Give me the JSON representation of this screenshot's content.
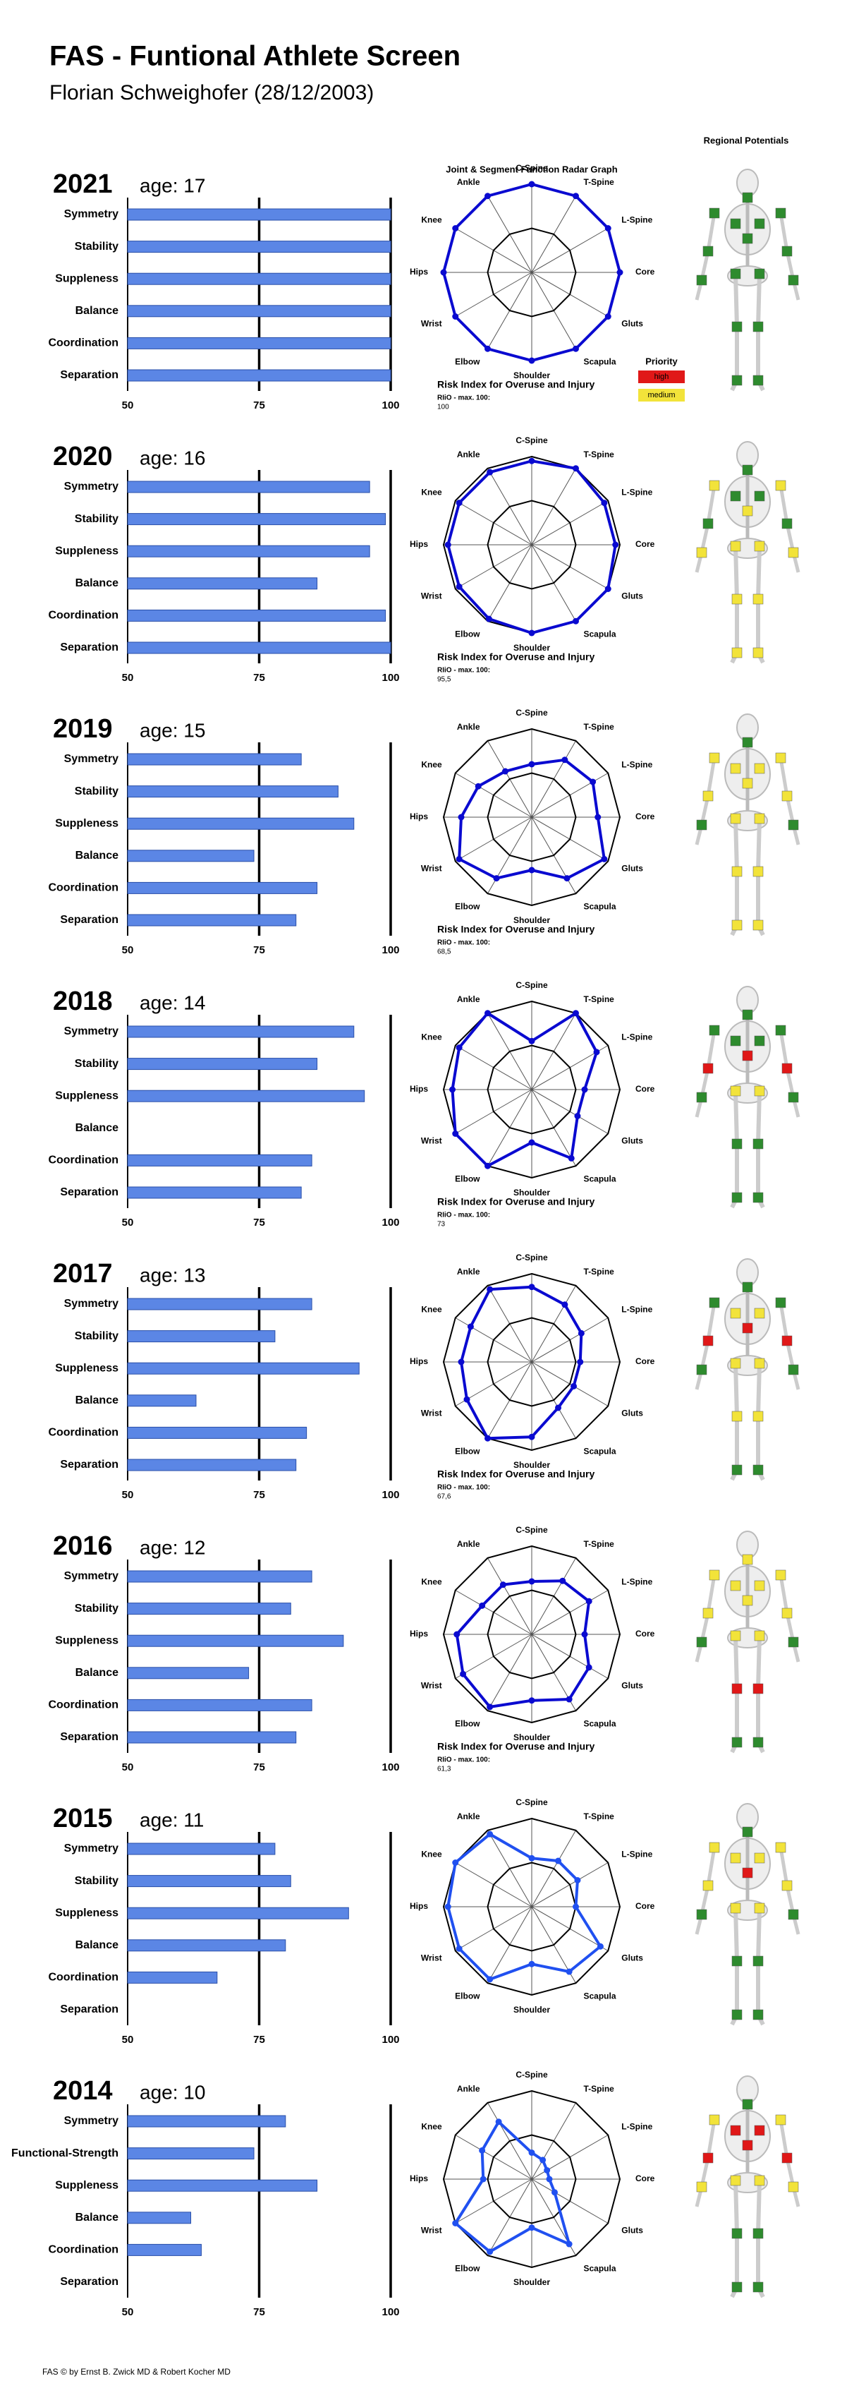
{
  "title": "FAS - Funtional Athlete Screen",
  "subtitle": "Florian Schweighofer (28/12/2003)",
  "footer": "FAS © by Ernst B. Zwick MD & Robert Kocher MD",
  "regional": {
    "title": "Regional Potentials",
    "priority_title": "Priority",
    "priority_items": [
      {
        "label": "high",
        "color": "#e01818"
      },
      {
        "label": "medium",
        "color": "#f2e33a"
      }
    ],
    "markers": [
      [
        "#2e8b2e",
        "#2e8b2e",
        "#2e8b2e",
        "#2e8b2e",
        "#2e8b2e",
        "#2e8b2e",
        "#2e8b2e",
        "#2e8b2e",
        "#2e8b2e",
        "#2e8b2e",
        "#2e8b2e",
        "#2e8b2e",
        "#2e8b2e",
        "#2e8b2e",
        "#2e8b2e",
        "#2e8b2e"
      ],
      [
        "#2e8b2e",
        "#f2e33a",
        "#f2e33a",
        "#2e8b2e",
        "#2e8b2e",
        "#f2e33a",
        "#2e8b2e",
        "#2e8b2e",
        "#f2e33a",
        "#f2e33a",
        "#f2e33a",
        "#f2e33a",
        "#f2e33a",
        "#f2e33a",
        "#f2e33a",
        "#f2e33a"
      ],
      [
        "#2e8b2e",
        "#f2e33a",
        "#f2e33a",
        "#f2e33a",
        "#f2e33a",
        "#f2e33a",
        "#f2e33a",
        "#f2e33a",
        "#f2e33a",
        "#f2e33a",
        "#2e8b2e",
        "#2e8b2e",
        "#f2e33a",
        "#f2e33a",
        "#f2e33a",
        "#f2e33a"
      ],
      [
        "#2e8b2e",
        "#2e8b2e",
        "#2e8b2e",
        "#2e8b2e",
        "#2e8b2e",
        "#e01818",
        "#e01818",
        "#e01818",
        "#f2e33a",
        "#f2e33a",
        "#2e8b2e",
        "#2e8b2e",
        "#2e8b2e",
        "#2e8b2e",
        "#2e8b2e",
        "#2e8b2e"
      ],
      [
        "#2e8b2e",
        "#2e8b2e",
        "#2e8b2e",
        "#f2e33a",
        "#f2e33a",
        "#e01818",
        "#e01818",
        "#e01818",
        "#f2e33a",
        "#f2e33a",
        "#2e8b2e",
        "#2e8b2e",
        "#f2e33a",
        "#f2e33a",
        "#2e8b2e",
        "#2e8b2e"
      ],
      [
        "#f2e33a",
        "#f2e33a",
        "#f2e33a",
        "#f2e33a",
        "#f2e33a",
        "#f2e33a",
        "#f2e33a",
        "#f2e33a",
        "#f2e33a",
        "#f2e33a",
        "#2e8b2e",
        "#2e8b2e",
        "#e01818",
        "#e01818",
        "#2e8b2e",
        "#2e8b2e"
      ],
      [
        "#2e8b2e",
        "#f2e33a",
        "#f2e33a",
        "#f2e33a",
        "#f2e33a",
        "#e01818",
        "#f2e33a",
        "#f2e33a",
        "#f2e33a",
        "#f2e33a",
        "#2e8b2e",
        "#2e8b2e",
        "#2e8b2e",
        "#2e8b2e",
        "#2e8b2e",
        "#2e8b2e"
      ],
      [
        "#2e8b2e",
        "#f2e33a",
        "#f2e33a",
        "#e01818",
        "#e01818",
        "#e01818",
        "#e01818",
        "#e01818",
        "#f2e33a",
        "#f2e33a",
        "#f2e33a",
        "#f2e33a",
        "#2e8b2e",
        "#2e8b2e",
        "#2e8b2e",
        "#2e8b2e"
      ]
    ]
  },
  "chart_data": [
    {
      "type": "bar",
      "title": "2021",
      "subtitle": "age: 17",
      "categories": [
        "Symmetry",
        "Stability",
        "Suppleness",
        "Balance",
        "Coordination",
        "Separation"
      ],
      "values": [
        100,
        100,
        100,
        100,
        100,
        100
      ],
      "color": "#5b86e5",
      "xlim": [
        50,
        100
      ],
      "xticks": [
        50,
        75,
        100
      ]
    },
    {
      "type": "radar",
      "title": "Joint & Segment Function Radar Graph",
      "categories": [
        "C-Spine",
        "T-Spine",
        "L-Spine",
        "Core",
        "Gluts",
        "Scapula",
        "Shoulder",
        "Elbow",
        "Wrist",
        "Hips",
        "Knee",
        "Ankle"
      ],
      "values": [
        100,
        100,
        100,
        100,
        100,
        100,
        100,
        100,
        100,
        100,
        100,
        100
      ],
      "color": "#0a0ad0",
      "rlim": [
        0,
        100
      ],
      "rticks": [
        50,
        100
      ],
      "risk_title": "Risk Index for Overuse and Injury",
      "risk_label": "RIiO - max. 100:",
      "risk_value": 100
    },
    {
      "type": "bar",
      "title": "2020",
      "subtitle": "age: 16",
      "categories": [
        "Symmetry",
        "Stability",
        "Suppleness",
        "Balance",
        "Coordination",
        "Separation"
      ],
      "values": [
        96,
        99,
        96,
        86,
        99,
        100
      ],
      "color": "#5b86e5",
      "xlim": [
        50,
        100
      ],
      "xticks": [
        50,
        75,
        100
      ]
    },
    {
      "type": "radar",
      "categories": [
        "C-Spine",
        "T-Spine",
        "L-Spine",
        "Core",
        "Gluts",
        "Scapula",
        "Shoulder",
        "Elbow",
        "Wrist",
        "Hips",
        "Knee",
        "Ankle"
      ],
      "values": [
        95,
        100,
        95,
        95,
        100,
        100,
        100,
        97,
        95,
        95,
        95,
        95
      ],
      "color": "#0a0ad0",
      "rlim": [
        0,
        100
      ],
      "rticks": [
        50,
        100
      ],
      "risk_title": "Risk Index for Overuse and Injury",
      "risk_label": "RIiO - max. 100:",
      "risk_value": 95.5,
      "risk_value_label": "95,5"
    },
    {
      "type": "bar",
      "title": "2019",
      "subtitle": "age: 15",
      "categories": [
        "Symmetry",
        "Stability",
        "Suppleness",
        "Balance",
        "Coordination",
        "Separation"
      ],
      "values": [
        83,
        90,
        93,
        74,
        86,
        82
      ],
      "color": "#5b86e5",
      "xlim": [
        50,
        100
      ],
      "xticks": [
        50,
        75,
        100
      ]
    },
    {
      "type": "radar",
      "categories": [
        "C-Spine",
        "T-Spine",
        "L-Spine",
        "Core",
        "Gluts",
        "Scapula",
        "Shoulder",
        "Elbow",
        "Wrist",
        "Hips",
        "Knee",
        "Ankle"
      ],
      "values": [
        60,
        75,
        80,
        75,
        95,
        80,
        60,
        80,
        95,
        80,
        70,
        60
      ],
      "color": "#0a0ad0",
      "rlim": [
        0,
        100
      ],
      "rticks": [
        50,
        100
      ],
      "risk_title": "Risk Index for Overuse and Injury",
      "risk_label": "RIiO - max. 100:",
      "risk_value": 68.5,
      "risk_value_label": "68,5"
    },
    {
      "type": "bar",
      "title": "2018",
      "subtitle": "age: 14",
      "categories": [
        "Symmetry",
        "Stability",
        "Suppleness",
        "Balance",
        "Coordination",
        "Separation"
      ],
      "values": [
        93,
        86,
        95,
        null,
        85,
        83
      ],
      "color": "#5b86e5",
      "xlim": [
        50,
        100
      ],
      "xticks": [
        50,
        75,
        100
      ]
    },
    {
      "type": "radar",
      "categories": [
        "C-Spine",
        "T-Spine",
        "L-Spine",
        "Core",
        "Gluts",
        "Scapula",
        "Shoulder",
        "Elbow",
        "Wrist",
        "Hips",
        "Knee",
        "Ankle"
      ],
      "values": [
        55,
        100,
        85,
        60,
        60,
        90,
        60,
        100,
        100,
        90,
        95,
        100
      ],
      "color": "#0a0ad0",
      "rlim": [
        0,
        100
      ],
      "rticks": [
        50,
        100
      ],
      "risk_title": "Risk Index for Overuse and Injury",
      "risk_label": "RIiO - max. 100:",
      "risk_value": 73
    },
    {
      "type": "bar",
      "title": "2017",
      "subtitle": "age: 13",
      "categories": [
        "Symmetry",
        "Stability",
        "Suppleness",
        "Balance",
        "Coordination",
        "Separation"
      ],
      "values": [
        85,
        78,
        94,
        63,
        84,
        82
      ],
      "color": "#5b86e5",
      "xlim": [
        50,
        100
      ],
      "xticks": [
        50,
        75,
        100
      ]
    },
    {
      "type": "radar",
      "categories": [
        "C-Spine",
        "T-Spine",
        "L-Spine",
        "Core",
        "Gluts",
        "Scapula",
        "Shoulder",
        "Elbow",
        "Wrist",
        "Hips",
        "Knee",
        "Ankle"
      ],
      "values": [
        85,
        75,
        65,
        55,
        55,
        60,
        85,
        100,
        85,
        80,
        80,
        95
      ],
      "color": "#0a0ad0",
      "rlim": [
        0,
        100
      ],
      "rticks": [
        50,
        100
      ],
      "risk_title": "Risk Index for Overuse and Injury",
      "risk_label": "RIiO - max. 100:",
      "risk_value": 67.6,
      "risk_value_label": "67,6"
    },
    {
      "type": "bar",
      "title": "2016",
      "subtitle": "age: 12",
      "categories": [
        "Symmetry",
        "Stability",
        "Suppleness",
        "Balance",
        "Coordination",
        "Separation"
      ],
      "values": [
        85,
        81,
        91,
        73,
        85,
        82
      ],
      "color": "#5b86e5",
      "xlim": [
        50,
        100
      ],
      "xticks": [
        50,
        75,
        100
      ]
    },
    {
      "type": "radar",
      "categories": [
        "C-Spine",
        "T-Spine",
        "L-Spine",
        "Core",
        "Gluts",
        "Scapula",
        "Shoulder",
        "Elbow",
        "Wrist",
        "Hips",
        "Knee",
        "Ankle"
      ],
      "values": [
        60,
        70,
        75,
        60,
        75,
        85,
        75,
        95,
        90,
        85,
        65,
        65
      ],
      "color": "#0a0ad0",
      "rlim": [
        0,
        100
      ],
      "rticks": [
        50,
        100
      ],
      "risk_title": "Risk Index for Overuse and Injury",
      "risk_label": "RIiO - max. 100:",
      "risk_value": 61.3,
      "risk_value_label": "61,3"
    },
    {
      "type": "bar",
      "title": "2015",
      "subtitle": "age: 11",
      "categories": [
        "Symmetry",
        "Stability",
        "Suppleness",
        "Balance",
        "Coordination",
        "Separation"
      ],
      "values": [
        78,
        81,
        92,
        80,
        67,
        null
      ],
      "color": "#5b86e5",
      "xlim": [
        50,
        100
      ],
      "xticks": [
        50,
        75,
        100
      ]
    },
    {
      "type": "radar",
      "categories": [
        "C-Spine",
        "T-Spine",
        "L-Spine",
        "Core",
        "Gluts",
        "Scapula",
        "Shoulder",
        "Elbow",
        "Wrist",
        "Hips",
        "Knee",
        "Ankle"
      ],
      "values": [
        55,
        60,
        60,
        50,
        90,
        85,
        65,
        95,
        95,
        95,
        100,
        95
      ],
      "color": "#2050f0",
      "rlim": [
        0,
        100
      ],
      "rticks": [
        50,
        100
      ]
    },
    {
      "type": "bar",
      "title": "2014",
      "subtitle": "age: 10",
      "categories": [
        "Symmetry",
        "Functional-Strength",
        "Suppleness",
        "Balance",
        "Coordination",
        "Separation"
      ],
      "values": [
        80,
        74,
        86,
        62,
        64,
        null
      ],
      "color": "#5b86e5",
      "xlim": [
        50,
        100
      ],
      "xticks": [
        50,
        75,
        100
      ]
    },
    {
      "type": "radar",
      "categories": [
        "C-Spine",
        "T-Spine",
        "L-Spine",
        "Core",
        "Gluts",
        "Scapula",
        "Shoulder",
        "Elbow",
        "Wrist",
        "Hips",
        "Knee",
        "Ankle"
      ],
      "values": [
        30,
        25,
        20,
        20,
        30,
        85,
        55,
        95,
        100,
        55,
        65,
        75
      ],
      "color": "#2050f0",
      "rlim": [
        0,
        100
      ],
      "rticks": [
        50,
        100
      ]
    }
  ]
}
